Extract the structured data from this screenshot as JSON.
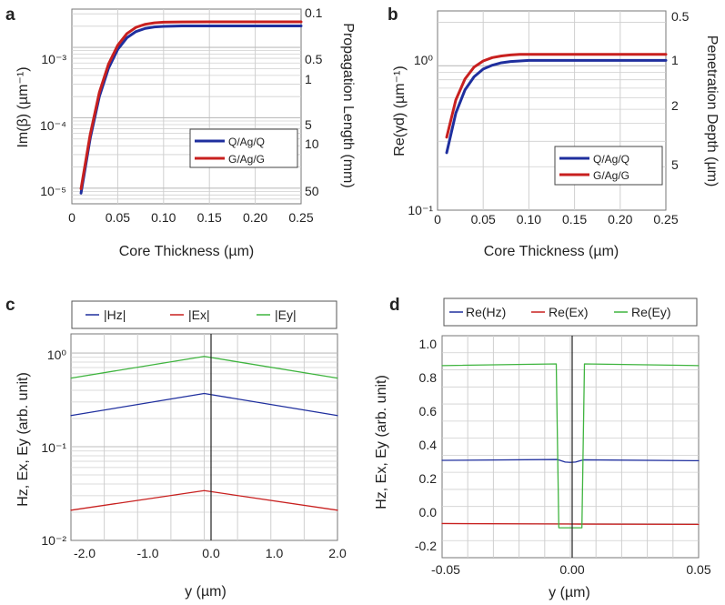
{
  "colors": {
    "blue": "#1f2f9e",
    "red": "#c8201f",
    "green": "#3fb43f",
    "frame": "#777777",
    "grid": "#cfcfcf"
  },
  "chart_data": [
    {
      "panel": "a",
      "type": "line",
      "xlabel": "Core Thickness (µm)",
      "ylabel": "Im(β) (µm⁻¹)",
      "y2label": "Propagation Length (mm)",
      "xlim": [
        0,
        0.25
      ],
      "ylim": [
        6e-06,
        0.0035
      ],
      "yscale": "log",
      "xticks": [
        "0",
        "0.05",
        "0.10",
        "0.15",
        "0.20",
        "0.25"
      ],
      "yticks": [
        "10⁻⁵",
        "10⁻⁴",
        "10⁻³"
      ],
      "y2ticks": [
        "0.1",
        "0.5",
        "1",
        "5",
        "10",
        "50"
      ],
      "grid": true,
      "legend_position": "lower-right",
      "series": [
        {
          "name": "Q/Ag/Q",
          "color": "blue",
          "x": [
            0.01,
            0.02,
            0.03,
            0.04,
            0.05,
            0.06,
            0.07,
            0.08,
            0.09,
            0.1,
            0.12,
            0.15,
            0.2,
            0.25
          ],
          "y": [
            8.5e-06,
            5.1e-05,
            0.000201,
            0.000507,
            0.000937,
            0.00137,
            0.00168,
            0.00186,
            0.00195,
            0.00199,
            0.00202,
            0.00202,
            0.00202,
            0.00202
          ]
        },
        {
          "name": "G/Ag/G",
          "color": "red",
          "x": [
            0.01,
            0.02,
            0.03,
            0.04,
            0.05,
            0.06,
            0.07,
            0.08,
            0.09,
            0.1,
            0.12,
            0.15,
            0.2,
            0.25
          ],
          "y": [
            9.8e-06,
            5.8e-05,
            0.00023,
            0.00058,
            0.00107,
            0.00157,
            0.00193,
            0.00213,
            0.00223,
            0.00228,
            0.0023,
            0.00231,
            0.00231,
            0.00231
          ]
        }
      ]
    },
    {
      "panel": "b",
      "type": "line",
      "xlabel": "Core Thickness (µm)",
      "ylabel": "Re(γd) (µm⁻¹)",
      "y2label": "Penetration Depth (µm)",
      "xlim": [
        0,
        0.25
      ],
      "ylim": [
        0.1,
        2.4
      ],
      "yscale": "log",
      "xticks": [
        "0",
        "0.05",
        "0.10",
        "0.15",
        "0.20",
        "0.25"
      ],
      "yticks": [
        "10⁻¹",
        "10⁰"
      ],
      "y2ticks": [
        "0.5",
        "1",
        "2",
        "5"
      ],
      "grid": true,
      "legend_position": "lower-right",
      "series": [
        {
          "name": "Q/Ag/Q",
          "color": "blue",
          "x": [
            0.01,
            0.02,
            0.03,
            0.04,
            0.05,
            0.06,
            0.07,
            0.08,
            0.09,
            0.1,
            0.12,
            0.15,
            0.2,
            0.25
          ],
          "y": [
            0.25,
            0.47,
            0.68,
            0.84,
            0.95,
            1.01,
            1.05,
            1.07,
            1.08,
            1.09,
            1.09,
            1.09,
            1.09,
            1.09
          ]
        },
        {
          "name": "G/Ag/G",
          "color": "red",
          "x": [
            0.01,
            0.02,
            0.03,
            0.04,
            0.05,
            0.06,
            0.07,
            0.08,
            0.09,
            0.1,
            0.12,
            0.15,
            0.2,
            0.25
          ],
          "y": [
            0.32,
            0.58,
            0.81,
            0.98,
            1.08,
            1.14,
            1.17,
            1.19,
            1.2,
            1.2,
            1.2,
            1.2,
            1.2,
            1.2
          ]
        }
      ]
    },
    {
      "panel": "c",
      "type": "line",
      "xlabel": "y (µm)",
      "ylabel": "Hz, Ex, Ey (arb. unit)",
      "xlim": [
        -2.0,
        2.0
      ],
      "ylim": [
        0.01,
        1.6
      ],
      "yscale": "log",
      "xticks": [
        "-2.0",
        "-1.0",
        "0.0",
        "1.0",
        "2.0"
      ],
      "yticks": [
        "10⁻²",
        "10⁻¹",
        "10⁰"
      ],
      "grid": true,
      "legend_position": "top",
      "series": [
        {
          "name": "|Hz|",
          "color": "blue",
          "x": [
            -2.0,
            0.0,
            2.0
          ],
          "y": [
            0.215,
            0.37,
            0.215
          ]
        },
        {
          "name": "|Ex|",
          "color": "red",
          "x": [
            -2.0,
            0.0,
            2.0
          ],
          "y": [
            0.021,
            0.034,
            0.021
          ]
        },
        {
          "name": "|Ey|",
          "color": "green",
          "x": [
            -2.0,
            0.0,
            2.0
          ],
          "y": [
            0.54,
            0.92,
            0.54
          ]
        }
      ]
    },
    {
      "panel": "d",
      "type": "line",
      "xlabel": "y (µm)",
      "ylabel": "Hz, Ex, Ey (arb. unit)",
      "xlim": [
        -0.05,
        0.05
      ],
      "ylim": [
        -0.2,
        1.1
      ],
      "yscale": "linear",
      "xticks": [
        "-0.05",
        "0.00",
        "0.05"
      ],
      "yticks": [
        "-0.2",
        "0.0",
        "0.2",
        "0.4",
        "0.6",
        "0.8",
        "1.0"
      ],
      "grid": true,
      "legend_position": "top",
      "series": [
        {
          "name": "Re(Hz)",
          "color": "blue",
          "x": [
            -0.05,
            -0.005,
            -0.002,
            0.0,
            0.002,
            0.005,
            0.05
          ],
          "y": [
            0.37,
            0.375,
            0.36,
            0.358,
            0.36,
            0.373,
            0.368
          ]
        },
        {
          "name": "Re(Ex)",
          "color": "red",
          "x": [
            -0.05,
            0.0,
            0.05
          ],
          "y": [
            0.0,
            -0.003,
            -0.005
          ]
        },
        {
          "name": "Re(Ey)",
          "color": "green",
          "x": [
            -0.05,
            -0.0055,
            -0.0045,
            0.0045,
            0.0055,
            0.05
          ],
          "y": [
            0.925,
            0.935,
            -0.025,
            -0.025,
            0.935,
            0.925
          ]
        }
      ]
    }
  ]
}
